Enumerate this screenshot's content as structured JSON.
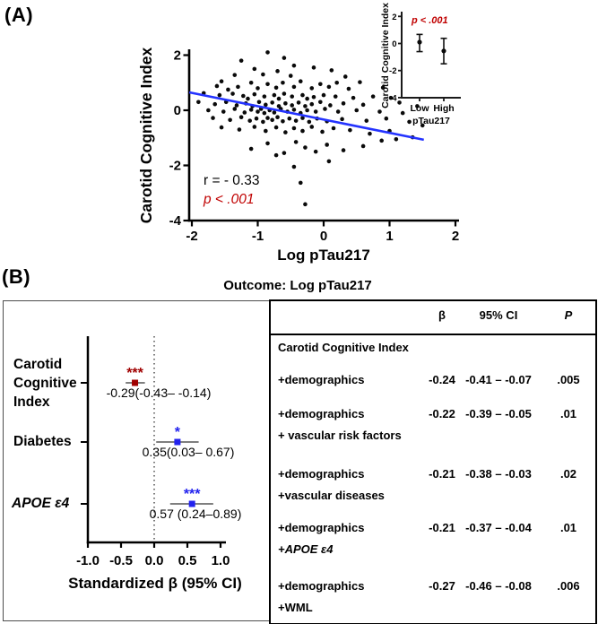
{
  "panelA": {
    "tag": "(A)"
  },
  "panelB": {
    "tag": "(B)",
    "title": "Outcome: Log pTau217"
  },
  "chart_data": [
    {
      "name": "scatter-correlation",
      "type": "scatter",
      "xlabel": "Log pTau217",
      "ylabel": "Carotid Cognitive Index",
      "xlim": [
        -2.05,
        2.05
      ],
      "ylim": [
        -4,
        2.25
      ],
      "xticks": [
        -2,
        -1,
        0,
        1,
        2
      ],
      "yticks": [
        2,
        0,
        -2,
        -4
      ],
      "annotation_r": "r = - 0.33",
      "annotation_p": "p < .001",
      "colors": {
        "point": "#0a0a0a",
        "line": "#2433ff",
        "p_text": "#c00000"
      },
      "regression_line": {
        "x1": -2.04,
        "y1": 0.65,
        "x2": 1.52,
        "y2": -1.07
      },
      "points": [
        [
          -0.85,
          2.1
        ],
        [
          -1.25,
          1.8
        ],
        [
          -0.6,
          1.9
        ],
        [
          -0.45,
          1.62
        ],
        [
          -1.05,
          1.5
        ],
        [
          -0.15,
          1.55
        ],
        [
          -0.7,
          1.42
        ],
        [
          0.12,
          1.45
        ],
        [
          -1.35,
          1.28
        ],
        [
          -0.92,
          1.3
        ],
        [
          -0.5,
          1.25
        ],
        [
          0.33,
          1.22
        ],
        [
          -1.55,
          1.05
        ],
        [
          -1.1,
          1.0
        ],
        [
          -0.85,
          0.95
        ],
        [
          -0.62,
          1.0
        ],
        [
          -0.35,
          1.05
        ],
        [
          -0.05,
          0.95
        ],
        [
          0.2,
          1.0
        ],
        [
          0.55,
          1.02
        ],
        [
          -1.62,
          0.88
        ],
        [
          -1.3,
          0.85
        ],
        [
          -1.0,
          0.8
        ],
        [
          -0.72,
          0.82
        ],
        [
          -0.45,
          0.85
        ],
        [
          -0.18,
          0.8
        ],
        [
          0.08,
          0.85
        ],
        [
          0.38,
          0.78
        ],
        [
          0.9,
          0.82
        ],
        [
          -1.45,
          0.75
        ],
        [
          -1.82,
          0.62
        ],
        [
          -1.58,
          0.55
        ],
        [
          -1.38,
          0.6
        ],
        [
          -1.22,
          0.52
        ],
        [
          -1.05,
          0.58
        ],
        [
          -0.9,
          0.5
        ],
        [
          -0.75,
          0.55
        ],
        [
          -0.6,
          0.6
        ],
        [
          -0.48,
          0.5
        ],
        [
          -0.32,
          0.55
        ],
        [
          -0.15,
          0.48
        ],
        [
          0.0,
          0.55
        ],
        [
          0.18,
          0.5
        ],
        [
          0.45,
          0.45
        ],
        [
          0.75,
          0.5
        ],
        [
          1.02,
          0.45
        ],
        [
          -1.15,
          0.42
        ],
        [
          -0.68,
          0.42
        ],
        [
          -0.25,
          0.42
        ],
        [
          -1.9,
          0.3
        ],
        [
          -1.65,
          0.22
        ],
        [
          -1.48,
          0.3
        ],
        [
          -1.32,
          0.18
        ],
        [
          -1.18,
          0.25
        ],
        [
          -1.08,
          0.15
        ],
        [
          -0.98,
          0.3
        ],
        [
          -0.88,
          0.2
        ],
        [
          -0.78,
          0.28
        ],
        [
          -0.68,
          0.15
        ],
        [
          -0.58,
          0.25
        ],
        [
          -0.48,
          0.18
        ],
        [
          -0.38,
          0.28
        ],
        [
          -0.28,
          0.15
        ],
        [
          -0.18,
          0.22
        ],
        [
          -0.05,
          0.3
        ],
        [
          0.1,
          0.18
        ],
        [
          0.3,
          0.25
        ],
        [
          0.6,
          0.2
        ],
        [
          1.15,
          0.28
        ],
        [
          1.42,
          0.15
        ],
        [
          -1.75,
          0.0
        ],
        [
          -1.52,
          -0.05
        ],
        [
          -1.35,
          0.05
        ],
        [
          -1.2,
          -0.08
        ],
        [
          -1.1,
          0.02
        ],
        [
          -1.0,
          -0.05
        ],
        [
          -0.95,
          0.05
        ],
        [
          -0.9,
          -0.1
        ],
        [
          -0.82,
          0.0
        ],
        [
          -0.75,
          -0.08
        ],
        [
          -0.65,
          0.05
        ],
        [
          -0.55,
          -0.05
        ],
        [
          -0.45,
          0.02
        ],
        [
          -0.35,
          -0.1
        ],
        [
          -0.25,
          0.0
        ],
        [
          -0.12,
          -0.05
        ],
        [
          0.02,
          0.05
        ],
        [
          0.22,
          -0.05
        ],
        [
          0.5,
          0.0
        ],
        [
          0.85,
          -0.05
        ],
        [
          1.2,
          -0.1
        ],
        [
          -1.68,
          -0.28
        ],
        [
          -1.42,
          -0.35
        ],
        [
          -1.25,
          -0.25
        ],
        [
          -1.12,
          -0.38
        ],
        [
          -1.02,
          -0.3
        ],
        [
          -0.92,
          -0.42
        ],
        [
          -0.85,
          -0.28
        ],
        [
          -0.78,
          -0.35
        ],
        [
          -0.7,
          -0.25
        ],
        [
          -0.62,
          -0.4
        ],
        [
          -0.52,
          -0.3
        ],
        [
          -0.42,
          -0.38
        ],
        [
          -0.32,
          -0.28
        ],
        [
          -0.22,
          -0.42
        ],
        [
          -0.1,
          -0.3
        ],
        [
          0.05,
          -0.4
        ],
        [
          0.28,
          -0.32
        ],
        [
          0.65,
          -0.38
        ],
        [
          0.95,
          -0.3
        ],
        [
          1.3,
          -0.42
        ],
        [
          -1.55,
          -0.62
        ],
        [
          -1.28,
          -0.7
        ],
        [
          -1.05,
          -0.6
        ],
        [
          -0.88,
          -0.75
        ],
        [
          -0.72,
          -0.62
        ],
        [
          -0.58,
          -0.8
        ],
        [
          -0.45,
          -0.65
        ],
        [
          -0.32,
          -0.75
        ],
        [
          -0.18,
          -0.6
        ],
        [
          -0.02,
          -0.78
        ],
        [
          0.15,
          -0.65
        ],
        [
          0.4,
          -0.72
        ],
        [
          0.7,
          -0.85
        ],
        [
          1.0,
          -0.75
        ],
        [
          1.5,
          -0.55
        ],
        [
          -1.1,
          -1.4
        ],
        [
          -0.85,
          -1.2
        ],
        [
          -0.6,
          -1.55
        ],
        [
          -0.42,
          -1.15
        ],
        [
          -0.28,
          -1.35
        ],
        [
          -0.12,
          -1.5
        ],
        [
          0.05,
          -1.25
        ],
        [
          0.3,
          -1.45
        ],
        [
          0.6,
          -1.3
        ],
        [
          0.88,
          -1.1
        ],
        [
          1.1,
          -1.05
        ],
        [
          1.35,
          -0.98
        ],
        [
          -0.72,
          -1.63
        ],
        [
          -0.45,
          -2.05
        ],
        [
          -0.35,
          -2.63
        ],
        [
          -0.28,
          -3.41
        ],
        [
          0.08,
          -1.85
        ]
      ]
    },
    {
      "name": "inset-group-comparison",
      "type": "errorbar",
      "xlabel": "pTau217",
      "ylabel": "Carotid Cognitive Index",
      "categories": [
        "Low",
        "High"
      ],
      "means": [
        0.1,
        -0.55
      ],
      "ci95": [
        [
          -0.6,
          0.67
        ],
        [
          -1.5,
          0.38
        ]
      ],
      "yticks": [
        2,
        0,
        -2,
        -4
      ],
      "ylim": [
        -4,
        2.3
      ],
      "annotation_p": "p < .001",
      "colors": {
        "point": "#0a0a0a",
        "p_text": "#c00000"
      }
    },
    {
      "name": "forest-plot",
      "type": "forest",
      "xlabel": "Standardized β (95% CI)",
      "xtick_labels": [
        "-1.0",
        "-0.5",
        "0.0",
        "0.5",
        "1.0"
      ],
      "xtick_values": [
        -1,
        -0.5,
        0,
        0.5,
        1
      ],
      "zero_line": 0,
      "rows": [
        {
          "label": "Carotid\nCognitive\nIndex",
          "beta": -0.29,
          "ci95": [
            -0.43,
            -0.14
          ],
          "stars": "***",
          "color": "#a00000",
          "value_text": "-0.29(-0.43– -0.14)"
        },
        {
          "label": "Diabetes",
          "beta": 0.35,
          "ci95": [
            0.03,
            0.67
          ],
          "stars": "*",
          "color": "#2222ee",
          "value_text": "0.35(0.03– 0.67)"
        },
        {
          "label": "APOE ε4",
          "beta": 0.57,
          "ci95": [
            0.24,
            0.89
          ],
          "stars": "***",
          "color": "#2222ee",
          "value_text": "0.57 (0.24–0.89)"
        }
      ]
    },
    {
      "name": "regression-table",
      "type": "table",
      "headers": {
        "beta": "β",
        "ci": "95% CI",
        "p": "P"
      },
      "section": "Carotid Cognitive Index",
      "rows": [
        {
          "model": "+demographics",
          "model2": "",
          "beta": "-0.24",
          "ci": "-0.41 – -0.07",
          "p": ".005"
        },
        {
          "model": "+demographics",
          "model2": "+ vascular risk factors",
          "beta": "-0.22",
          "ci": "-0.39 – -0.05",
          "p": ".01"
        },
        {
          "model": "+demographics",
          "model2": "+vascular diseases",
          "beta": "-0.21",
          "ci": "-0.38 – -0.03",
          "p": ".02"
        },
        {
          "model": "+demographics",
          "model2": "+APOE ε4",
          "beta": "-0.21",
          "ci": "-0.37 – -0.04",
          "p": ".01"
        },
        {
          "model": "+demographics",
          "model2": "+WML",
          "beta": "-0.27",
          "ci": "-0.46 – -0.08",
          "p": ".006"
        }
      ]
    }
  ]
}
